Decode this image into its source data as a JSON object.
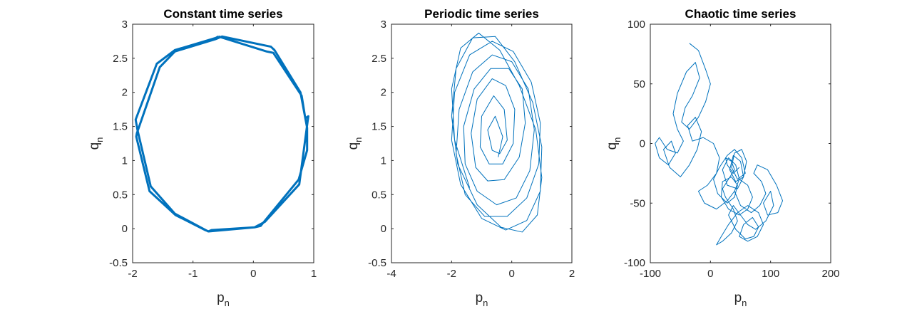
{
  "colors": {
    "line": "#0072BD",
    "axes": "#262626",
    "background": "#ffffff"
  },
  "chart_data": [
    {
      "type": "line",
      "title": "Constant time series",
      "xlabel": {
        "base": "p",
        "sub": "n"
      },
      "ylabel": {
        "base": "q",
        "sub": "n"
      },
      "xlim": [
        -2,
        1
      ],
      "ylim": [
        -0.5,
        3
      ],
      "xticks": [
        -2,
        -1,
        0,
        1
      ],
      "yticks": [
        -0.5,
        0,
        0.5,
        1,
        1.5,
        2,
        2.5,
        3
      ],
      "xticklabels": [
        "-2",
        "-1",
        "0",
        "1"
      ],
      "yticklabels": [
        "-0.5",
        "0",
        "0.5",
        "1",
        "1.5",
        "2",
        "2.5",
        "3"
      ],
      "grid": false,
      "series": [
        {
          "x": [
            -0.58,
            -0.62,
            -1.3,
            -1.6,
            -1.95,
            -1.92,
            -1.7,
            -1.3,
            -0.75,
            -0.69,
            0.02,
            0.12,
            0.75,
            0.89,
            0.89,
            0.78,
            0.35,
            0.29,
            -0.52,
            -0.63,
            -1.3,
            -1.55,
            -1.93,
            -1.94,
            -1.72,
            -1.29,
            -0.8,
            -0.74,
            0.02,
            0.19,
            0.76,
            0.91,
            0.86,
            0.8,
            0.33,
            0.22,
            -0.58
          ],
          "y": [
            2.82,
            2.8,
            2.62,
            2.42,
            1.6,
            1.45,
            0.62,
            0.22,
            -0.04,
            -0.02,
            0.02,
            0.04,
            0.72,
            1.15,
            1.48,
            2.0,
            2.62,
            2.67,
            2.82,
            2.78,
            2.6,
            2.37,
            1.4,
            1.35,
            0.55,
            0.2,
            -0.02,
            -0.04,
            0.02,
            0.1,
            0.65,
            1.65,
            1.62,
            1.95,
            2.58,
            2.6,
            2.82
          ]
        }
      ]
    },
    {
      "type": "line",
      "title": "Periodic time series",
      "xlabel": {
        "base": "p",
        "sub": "n"
      },
      "ylabel": {
        "base": "q",
        "sub": "n"
      },
      "xlim": [
        -4,
        2
      ],
      "ylim": [
        -0.5,
        3
      ],
      "xticks": [
        -4,
        -2,
        0,
        2
      ],
      "yticks": [
        -0.5,
        0,
        0.5,
        1,
        1.5,
        2,
        2.5,
        3
      ],
      "xticklabels": [
        "-4",
        "-2",
        "0",
        "2"
      ],
      "yticklabels": [
        "-0.5",
        "0",
        "0.5",
        "1",
        "1.5",
        "2",
        "2.5",
        "3"
      ],
      "grid": false,
      "series": [
        {
          "x": [
            -0.45,
            -0.3,
            -0.55,
            -0.8,
            -0.65,
            -0.4,
            -0.15,
            -0.25,
            -0.6,
            -1.0,
            -1.05,
            -0.75,
            -0.3,
            0.05,
            0.1,
            -0.2,
            -0.65,
            -1.15,
            -1.35,
            -1.2,
            -0.8,
            -0.25,
            0.25,
            0.45,
            0.35,
            -0.1,
            -0.7,
            -1.25,
            -1.6,
            -1.55,
            -1.15,
            -0.5,
            0.15,
            0.6,
            0.75,
            0.55,
            0.0,
            -0.65,
            -1.3,
            -1.75,
            -1.85,
            -1.55,
            -0.9,
            -0.15,
            0.5,
            0.9,
            0.95,
            0.65,
            0.05,
            -0.65,
            -1.4,
            -1.9,
            -2.0,
            -1.7,
            -1.0,
            -0.2,
            0.5,
            0.95,
            1.0,
            0.7,
            0.1,
            -0.55,
            -1.3,
            -1.85,
            -2.0,
            -1.8,
            -1.15,
            -0.35,
            0.35,
            0.85,
            1.0,
            0.8,
            0.25,
            -0.4,
            -1.1,
            -1.7,
            -2.0,
            -1.9,
            -1.4
          ],
          "y": [
            1.05,
            1.35,
            1.65,
            1.45,
            1.15,
            1.1,
            1.3,
            1.75,
            1.95,
            1.65,
            1.2,
            0.95,
            0.95,
            1.25,
            1.75,
            2.1,
            2.2,
            1.9,
            1.4,
            0.9,
            0.7,
            0.72,
            1.05,
            1.55,
            2.05,
            2.35,
            2.35,
            2.05,
            1.5,
            0.95,
            0.55,
            0.35,
            0.45,
            0.85,
            1.45,
            2.05,
            2.45,
            2.55,
            2.3,
            1.75,
            1.1,
            0.5,
            0.18,
            0.18,
            0.45,
            0.95,
            1.55,
            2.15,
            2.6,
            2.75,
            2.55,
            2.0,
            1.3,
            0.65,
            0.15,
            -0.02,
            0.12,
            0.55,
            1.2,
            1.85,
            2.45,
            2.82,
            2.8,
            2.35,
            1.65,
            0.95,
            0.35,
            0.02,
            -0.05,
            0.2,
            0.75,
            1.45,
            2.1,
            2.62,
            2.87,
            2.65,
            2.05,
            1.3,
            0.6
          ]
        }
      ]
    },
    {
      "type": "line",
      "title": "Chaotic time series",
      "xlabel": {
        "base": "p",
        "sub": "n"
      },
      "ylabel": {
        "base": "q",
        "sub": "n"
      },
      "xlim": [
        -100,
        200
      ],
      "ylim": [
        -100,
        100
      ],
      "xticks": [
        -100,
        0,
        100,
        200
      ],
      "yticks": [
        -100,
        -50,
        0,
        50,
        100
      ],
      "xticklabels": [
        "-100",
        "0",
        "100",
        "200"
      ],
      "yticklabels": [
        "-100",
        "-50",
        "0",
        "50",
        "100"
      ],
      "grid": false,
      "series": [
        {
          "x": [
            -35,
            -20,
            -8,
            0,
            -8,
            -20,
            -35,
            -48,
            -42,
            -30,
            -18,
            -25,
            -40,
            -55,
            -62,
            -55,
            -45,
            -55,
            -72,
            -85,
            -92,
            -85,
            -70,
            -58,
            -65,
            -78,
            -68,
            -50,
            -35,
            -22,
            -15,
            -25,
            -38,
            -30,
            -12,
            5,
            15,
            10,
            -5,
            -20,
            -10,
            10,
            28,
            40,
            48,
            42,
            30,
            20,
            28,
            45,
            55,
            50,
            38,
            32,
            42,
            55,
            60,
            52,
            40,
            35,
            45,
            58,
            52,
            40,
            28,
            15,
            5,
            12,
            28,
            40,
            45,
            35,
            20,
            18,
            30,
            48,
            62,
            70,
            62,
            48,
            40,
            50,
            68,
            82,
            92,
            85,
            72,
            78,
            95,
            110,
            120,
            112,
            95,
            88,
            100,
            105,
            92,
            75,
            62,
            50,
            38,
            30,
            42,
            58,
            72,
            80,
            70,
            55,
            48,
            62,
            78,
            88,
            80,
            62,
            45,
            30,
            18,
            10,
            20,
            35,
            45,
            38,
            25,
            20,
            30,
            40,
            35,
            25,
            28,
            38,
            48
          ],
          "y": [
            84,
            78,
            62,
            50,
            35,
            22,
            12,
            18,
            30,
            40,
            55,
            68,
            60,
            42,
            25,
            12,
            2,
            -8,
            -5,
            5,
            0,
            -12,
            -18,
            -8,
            2,
            -5,
            -20,
            -28,
            -18,
            -5,
            10,
            22,
            15,
            2,
            5,
            0,
            -12,
            -25,
            -35,
            -40,
            -50,
            -55,
            -48,
            -40,
            -30,
            -18,
            -12,
            -22,
            -35,
            -38,
            -28,
            -15,
            -10,
            -22,
            -32,
            -28,
            -15,
            -5,
            -8,
            -20,
            -30,
            -25,
            -12,
            -5,
            -10,
            -20,
            -30,
            -42,
            -50,
            -45,
            -35,
            -28,
            -32,
            -45,
            -55,
            -60,
            -55,
            -45,
            -35,
            -30,
            -40,
            -52,
            -58,
            -52,
            -42,
            -32,
            -25,
            -18,
            -22,
            -35,
            -48,
            -58,
            -60,
            -50,
            -40,
            -52,
            -65,
            -72,
            -68,
            -60,
            -52,
            -60,
            -72,
            -80,
            -78,
            -70,
            -62,
            -68,
            -78,
            -82,
            -78,
            -68,
            -58,
            -52,
            -58,
            -68,
            -78,
            -85,
            -82,
            -75,
            -65,
            -55,
            -45,
            -38,
            -30,
            -22,
            -15,
            -12,
            -18,
            -25,
            -20
          ]
        }
      ]
    }
  ]
}
